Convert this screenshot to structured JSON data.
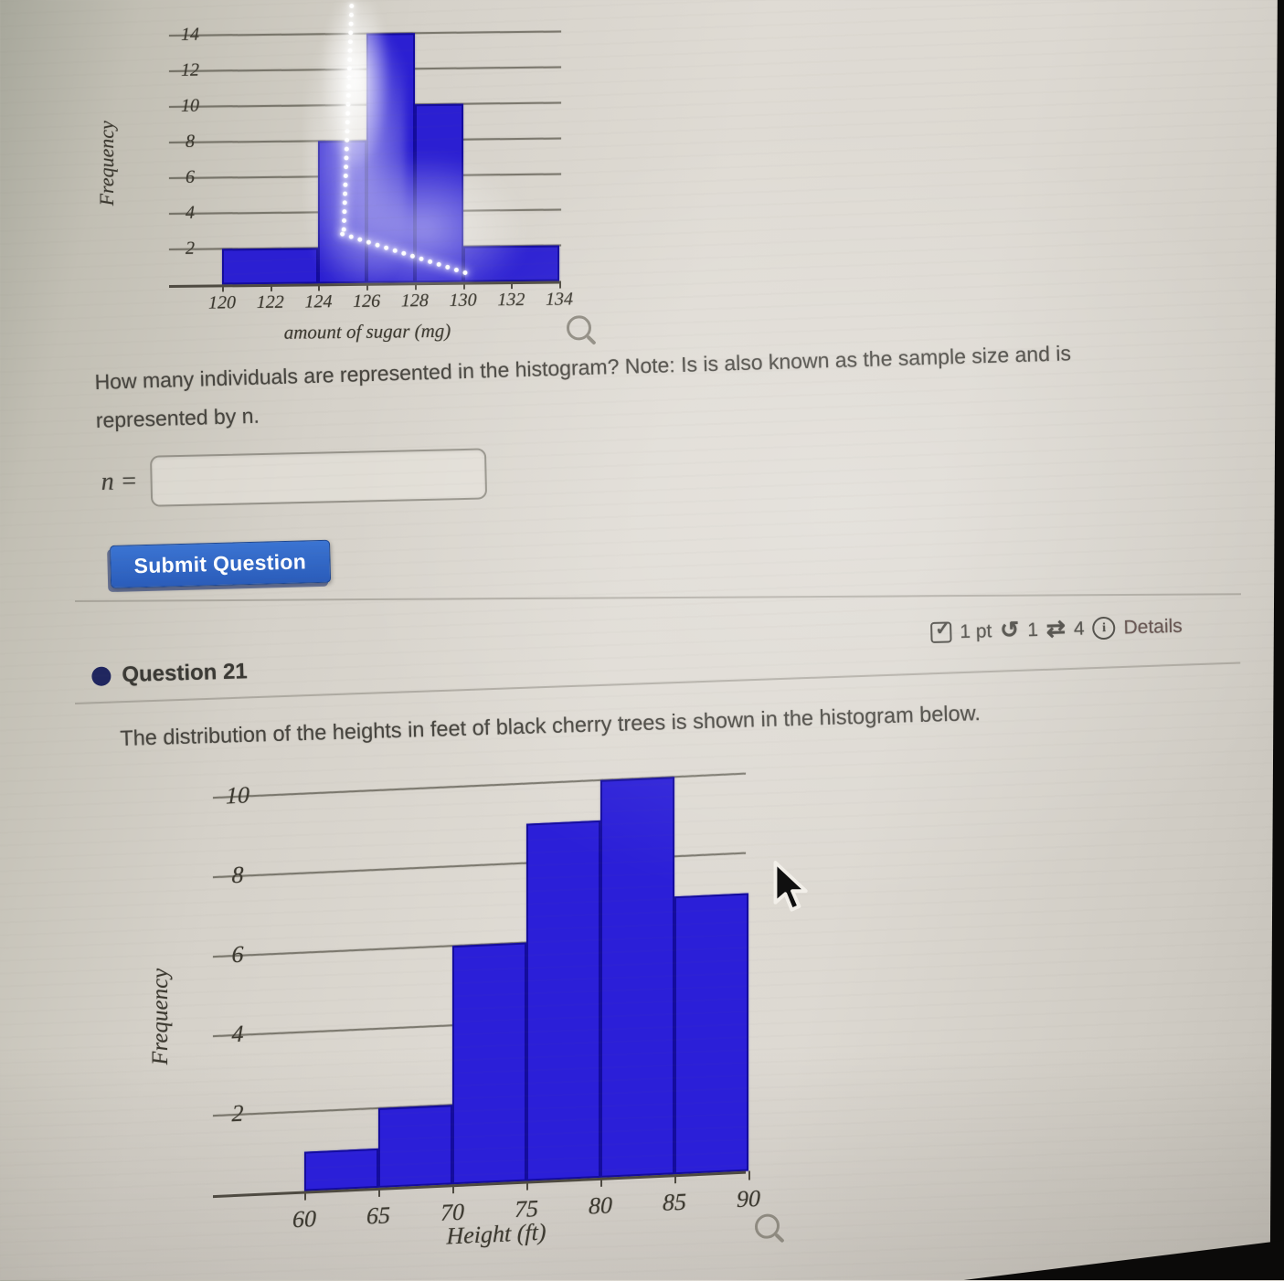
{
  "question20": {
    "prompt": "How many individuals are represented in the histogram? Note: Is is also known as the sample size and is represented by n.",
    "n_label": "n =",
    "input_value": "",
    "submit_label": "Submit Question"
  },
  "meta_row": {
    "checkbox_icon": "✓",
    "points_label": "1 pt",
    "undo_icon": "↺",
    "undo_count": "1",
    "regen_icon": "⇄",
    "regen_count": "4",
    "info_icon": "i",
    "details_label": "Details"
  },
  "question21": {
    "title": "Question 21",
    "prompt": "The distribution of the heights in feet of black cherry trees is shown in the histogram below."
  },
  "chart_data": [
    {
      "type": "bar",
      "title": "",
      "xlabel": "amount of sugar (mg)",
      "ylabel": "Frequency",
      "bin_edges": [
        120,
        122,
        124,
        126,
        128,
        130,
        132,
        134
      ],
      "values": [
        2,
        2,
        8,
        14,
        10,
        2,
        2
      ],
      "x_ticks": [
        120,
        122,
        124,
        126,
        128,
        130,
        132,
        134
      ],
      "y_ticks": [
        2,
        4,
        6,
        8,
        10,
        12,
        14
      ],
      "ylim": [
        0,
        14
      ],
      "grid": true,
      "legend": "none",
      "bar_color": "#2b1fd2"
    },
    {
      "type": "bar",
      "title": "",
      "xlabel": "Height (ft)",
      "ylabel": "Frequency",
      "bin_edges": [
        60,
        65,
        70,
        75,
        80,
        85,
        90
      ],
      "values": [
        1,
        2,
        6,
        9,
        10,
        7
      ],
      "x_ticks": [
        60,
        65,
        70,
        75,
        80,
        85,
        90
      ],
      "y_ticks": [
        2,
        4,
        6,
        8,
        10
      ],
      "ylim": [
        0,
        10.5
      ],
      "grid": true,
      "legend": "none",
      "bar_color": "#2b1fd8"
    }
  ]
}
